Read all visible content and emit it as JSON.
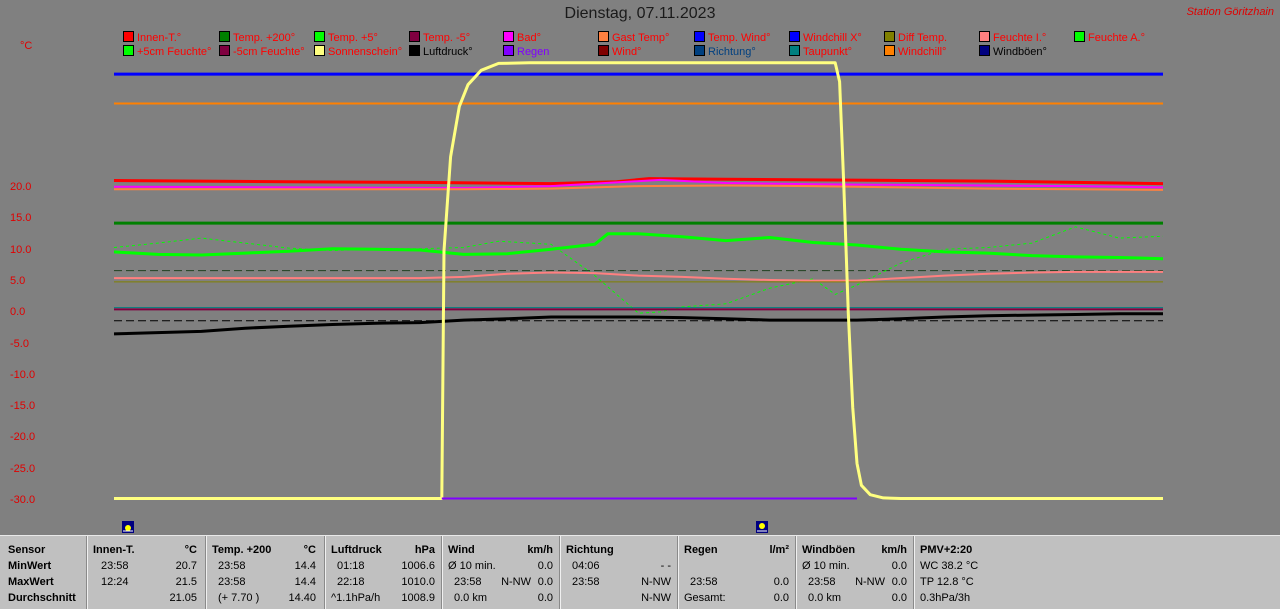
{
  "header": {
    "title": "Dienstag, 07.11.2023",
    "station": "Station Göritzhain",
    "unit": "°C"
  },
  "legend": [
    {
      "label": "Innen-T.°",
      "color": "#ff0000",
      "text_color": "#ff0000"
    },
    {
      "label": "Temp. +200°",
      "color": "#008000",
      "text_color": "#ff0000"
    },
    {
      "label": "Temp. +5°",
      "color": "#00ff00",
      "text_color": "#ff0000"
    },
    {
      "label": "Temp. -5°",
      "color": "#800040",
      "text_color": "#ff0000"
    },
    {
      "label": "Bad°",
      "color": "#ff00ff",
      "text_color": "#ff0000"
    },
    {
      "label": "Gast Temp°",
      "color": "#ff8040",
      "text_color": "#ff0000"
    },
    {
      "label": "Temp. Wind°",
      "color": "#0000ff",
      "text_color": "#ff0000"
    },
    {
      "label": "Windchill X°",
      "color": "#0000ff",
      "text_color": "#ff0000"
    },
    {
      "label": "Diff Temp.",
      "color": "#808000",
      "text_color": "#ff0000"
    },
    {
      "label": "Feuchte I.°",
      "color": "#ff8080",
      "text_color": "#ff0000"
    },
    {
      "label": "Feuchte A.°",
      "color": "#00ff00",
      "text_color": "#ff0000"
    },
    {
      "label": "+5cm Feuchte°",
      "color": "#00ff00",
      "text_color": "#ff0000"
    },
    {
      "label": "-5cm Feuchte°",
      "color": "#800040",
      "text_color": "#ff0000"
    },
    {
      "label": "Sonnenschein°",
      "color": "#ffff80",
      "text_color": "#ff0000"
    },
    {
      "label": "Luftdruck°",
      "color": "#000000",
      "text_color": "#000000"
    },
    {
      "label": "Regen",
      "color": "#8000ff",
      "text_color": "#8000ff"
    },
    {
      "label": "Wind°",
      "color": "#800000",
      "text_color": "#ff0000"
    },
    {
      "label": "Richtung°",
      "color": "#004080",
      "text_color": "#004080"
    },
    {
      "label": "Taupunkt°",
      "color": "#008080",
      "text_color": "#ff0000"
    },
    {
      "label": "Windchill°",
      "color": "#ff8000",
      "text_color": "#ff0000"
    },
    {
      "label": "Windböen°",
      "color": "#000080",
      "text_color": "#000000"
    }
  ],
  "chart_data": {
    "type": "line",
    "title": "Dienstag, 07.11.2023",
    "ylabel": "°C",
    "ylim": [
      -30,
      40
    ],
    "xlim": [
      0,
      24
    ],
    "yticks": [
      "20.0",
      "15.0",
      "10.0",
      "5.0",
      "0.0",
      "-5.0",
      "-10.0",
      "-15.0",
      "-20.0",
      "-25.0",
      "-30.0"
    ],
    "grid": false,
    "legend_placement": "top",
    "series": [
      {
        "name": "Innen-T.°",
        "color": "#ff0000",
        "width": 3,
        "x": [
          0,
          4,
          7,
          10,
          11.5,
          12.24,
          14,
          16,
          18,
          20,
          22,
          24
        ],
        "y": [
          21.2,
          21.0,
          20.9,
          20.7,
          21.0,
          21.5,
          21.4,
          21.3,
          21.2,
          21.1,
          20.9,
          20.7
        ]
      },
      {
        "name": "Bad°",
        "color": "#ff00ff",
        "width": 2,
        "x": [
          0,
          4,
          8,
          10,
          11.5,
          12.5,
          14,
          16,
          18,
          20,
          22,
          24
        ],
        "y": [
          20.2,
          20.1,
          20.0,
          20.3,
          20.9,
          21.3,
          20.8,
          20.6,
          20.5,
          20.4,
          20.3,
          20.1
        ]
      },
      {
        "name": "Gast Temp°",
        "color": "#ff8040",
        "width": 2,
        "x": [
          0,
          4,
          8,
          10,
          12,
          14,
          16,
          18,
          20,
          22,
          24
        ],
        "y": [
          19.8,
          19.8,
          19.8,
          19.9,
          20.3,
          20.4,
          20.3,
          20.1,
          19.9,
          19.8,
          19.7
        ]
      },
      {
        "name": "Temp. +200°",
        "color": "#008000",
        "width": 3,
        "x": [
          0,
          24
        ],
        "y": [
          14.4,
          14.4
        ]
      },
      {
        "name": "Temp. +5°",
        "color": "#00ff00",
        "width": 3,
        "x": [
          0,
          1,
          2,
          3,
          4,
          5,
          6,
          7,
          8,
          9,
          10,
          11,
          11.3,
          12,
          13,
          14,
          15,
          16,
          17,
          18,
          19,
          20,
          21,
          22,
          23,
          24
        ],
        "y": [
          9.8,
          9.4,
          9.3,
          9.6,
          9.9,
          10.3,
          10.2,
          10.1,
          9.4,
          9.5,
          10.2,
          11.0,
          12.7,
          12.7,
          12.2,
          11.6,
          12.1,
          11.3,
          10.9,
          10.2,
          9.8,
          9.6,
          9.2,
          9.0,
          8.9,
          8.7
        ]
      },
      {
        "name": "Feuchte A.°",
        "color": "#00ff00",
        "width": 1,
        "dash": "3,3",
        "x": [
          0,
          1,
          2,
          3,
          4,
          5,
          6,
          7,
          8,
          8.8,
          10,
          11,
          12,
          12.5,
          13,
          14,
          15,
          16,
          16.5,
          17,
          18,
          19,
          20,
          21,
          22,
          23,
          24
        ],
        "y": [
          10.5,
          11.2,
          12.0,
          11.2,
          10.4,
          10.0,
          10.3,
          10.3,
          10.5,
          11.5,
          11.0,
          6.0,
          0.0,
          0.2,
          1.0,
          1.5,
          4.0,
          5.5,
          3.0,
          4.5,
          8.0,
          10.2,
          10.5,
          11.2,
          13.8,
          12.0,
          12.3
        ]
      },
      {
        "name": "Temp. Wind°",
        "color": "#0000ff",
        "width": 3,
        "x": [
          0,
          24
        ],
        "y": [
          38.2,
          38.2
        ]
      },
      {
        "name": "Windchill°",
        "color": "#ff8000",
        "width": 2,
        "x": [
          0,
          24
        ],
        "y": [
          33.5,
          33.5
        ]
      },
      {
        "name": "Feuchte I.°",
        "color": "#ff8080",
        "width": 2,
        "x": [
          0,
          6,
          7,
          8,
          9,
          10,
          11,
          12,
          13,
          14,
          15,
          16,
          17,
          18,
          19,
          20,
          21,
          22,
          23,
          24
        ],
        "y": [
          5.6,
          5.6,
          5.6,
          5.8,
          6.3,
          6.5,
          6.4,
          6.0,
          5.8,
          5.5,
          5.3,
          5.2,
          5.2,
          5.6,
          6.0,
          6.3,
          6.5,
          6.6,
          6.6,
          6.6
        ]
      },
      {
        "name": "Taupunkt°",
        "color": "#008080",
        "width": 1,
        "x": [
          0,
          24
        ],
        "y": [
          0.9,
          0.9
        ]
      },
      {
        "name": "Diff Temp.",
        "color": "#808000",
        "width": 1,
        "x": [
          0,
          24
        ],
        "y": [
          5.0,
          5.0
        ]
      },
      {
        "name": "Temp. -5°",
        "color": "#800040",
        "width": 2,
        "x": [
          0,
          24
        ],
        "y": [
          0.6,
          0.6
        ]
      },
      {
        "name": "Luftdruck°",
        "color": "#000000",
        "width": 3,
        "x": [
          0,
          1,
          2,
          3,
          4,
          5,
          6,
          7,
          8,
          9,
          10,
          11,
          12,
          13,
          14,
          15,
          16,
          17,
          18,
          19,
          20,
          21,
          22,
          23,
          24
        ],
        "y": [
          -3.3,
          -3.1,
          -2.9,
          -2.4,
          -2.1,
          -1.8,
          -1.6,
          -1.5,
          -1.1,
          -0.9,
          -0.6,
          -0.6,
          -0.6,
          -0.7,
          -0.9,
          -1.1,
          -1.1,
          -1.1,
          -0.9,
          -0.6,
          -0.4,
          -0.3,
          -0.2,
          -0.1,
          -0.1
        ]
      },
      {
        "name": "Sonnenschein°",
        "color": "#ffff80",
        "width": 3,
        "x": [
          0,
          7.5,
          7.55,
          7.7,
          7.9,
          8.1,
          8.4,
          8.8,
          9.5,
          16.5,
          16.6,
          16.7,
          16.8,
          16.9,
          17.0,
          17.1,
          17.3,
          17.6,
          18.0,
          24
        ],
        "y": [
          -29.6,
          -29.6,
          10.0,
          25.0,
          33.0,
          36.5,
          38.8,
          39.9,
          40.0,
          40.0,
          37.0,
          20.0,
          0.0,
          -15.0,
          -24.0,
          -27.5,
          -29.0,
          -29.5,
          -29.6,
          -29.6
        ]
      },
      {
        "name": "Regen",
        "color": "#8000ff",
        "width": 2,
        "x": [
          7.5,
          17.0
        ],
        "y": [
          -29.6,
          -29.6
        ]
      }
    ],
    "reference_lines": [
      {
        "name": "taupunkt-ref",
        "color": "#204020",
        "dash": "8,4",
        "y": 6.8
      },
      {
        "name": "zero-ref",
        "color": "#000000",
        "dash": "8,4",
        "y": -1.2
      }
    ]
  },
  "table": {
    "sensor": {
      "header": "Sensor",
      "min": "MinWert",
      "max": "MaxWert",
      "avg": "Durchschnitt"
    },
    "innen": {
      "header": "Innen-T.",
      "unit": "°C",
      "min_time": "23:58",
      "min_val": "20.7",
      "max_time": "12:24",
      "max_val": "21.5",
      "avg": "21.05"
    },
    "temp200": {
      "header": "Temp. +200",
      "unit": "°C",
      "min_time": "23:58",
      "min_val": "14.4",
      "max_time": "23:58",
      "max_val": "14.4",
      "avg_note": "(+ 7.70 )",
      "avg": "14.40"
    },
    "luftdruck": {
      "header": "Luftdruck",
      "unit": "hPa",
      "min_time": "01:18",
      "min_val": "1006.6",
      "max_time": "22:18",
      "max_val": "1010.0",
      "avg_note": "^1.1hPa/h",
      "avg": "1008.9"
    },
    "wind": {
      "header": "Wind",
      "unit": "km/h",
      "min_time": "Ø 10 min.",
      "min_val": "0.0",
      "max_time": "23:58",
      "max_dir": "N-NW",
      "max_val": "0.0",
      "avg_note": "0.0 km",
      "avg": "0.0"
    },
    "richtung": {
      "header": "Richtung",
      "min_time": "04:06",
      "min_val": "- -",
      "max_time": "23:58",
      "max_val": "N-NW",
      "avg": "N-NW"
    },
    "regen": {
      "header": "Regen",
      "unit": "l/m²",
      "max_time": "23:58",
      "max_val": "0.0",
      "avg_label": "Gesamt:",
      "avg": "0.0"
    },
    "windboeen": {
      "header": "Windböen",
      "unit": "km/h",
      "min_time": "Ø 10 min.",
      "min_val": "0.0",
      "max_time": "23:58",
      "max_dir": "N-NW",
      "max_val": "0.0",
      "avg_note": "0.0 km",
      "avg": "0.0"
    },
    "pmv": {
      "header": "PMV+2:20",
      "line1": "WC 38.2 °C",
      "line2": "TP 12.8 °C",
      "line3": "0.3hPa/3h"
    }
  },
  "icons": {
    "sunrise": "sunrise-icon",
    "sunset": "sunset-icon"
  }
}
